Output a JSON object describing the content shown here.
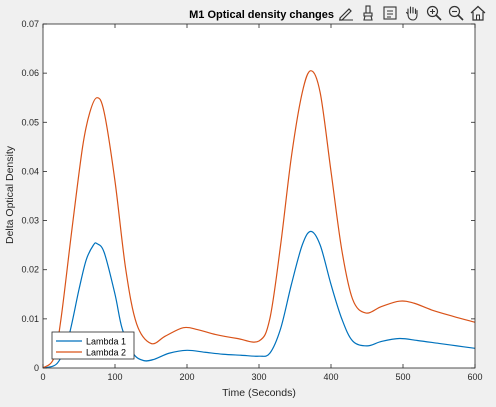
{
  "chart_data": {
    "type": "line",
    "title": "M1  Optical density changes",
    "xlabel": "Time (Seconds)",
    "ylabel": "Delta Optical Density",
    "xlim": [
      0,
      600
    ],
    "ylim": [
      0,
      0.07
    ],
    "xticks": [
      0,
      100,
      200,
      300,
      400,
      500,
      600
    ],
    "xtick_labels": [
      "0",
      "100",
      "200",
      "300",
      "400",
      "500",
      "600"
    ],
    "yticks": [
      0,
      0.01,
      0.02,
      0.03,
      0.04,
      0.05,
      0.06,
      0.07
    ],
    "ytick_labels": [
      "0",
      "0.01",
      "0.02",
      "0.03",
      "0.04",
      "0.05",
      "0.06",
      "0.07"
    ],
    "legend_position": "bottom-left",
    "series": [
      {
        "name": "Lambda 1",
        "color": "#0072BD",
        "points": [
          [
            0,
            0
          ],
          [
            20,
            0.001
          ],
          [
            35,
            0.006
          ],
          [
            50,
            0.016
          ],
          [
            60,
            0.022
          ],
          [
            70,
            0.025
          ],
          [
            75,
            0.0253
          ],
          [
            85,
            0.0235
          ],
          [
            100,
            0.015
          ],
          [
            110,
            0.008
          ],
          [
            125,
            0.003
          ],
          [
            140,
            0.0015
          ],
          [
            155,
            0.0018
          ],
          [
            175,
            0.003
          ],
          [
            200,
            0.0036
          ],
          [
            225,
            0.0032
          ],
          [
            250,
            0.0028
          ],
          [
            275,
            0.0026
          ],
          [
            300,
            0.0024
          ],
          [
            315,
            0.003
          ],
          [
            330,
            0.008
          ],
          [
            345,
            0.017
          ],
          [
            360,
            0.025
          ],
          [
            372,
            0.0278
          ],
          [
            385,
            0.025
          ],
          [
            400,
            0.017
          ],
          [
            415,
            0.01
          ],
          [
            430,
            0.0055
          ],
          [
            450,
            0.0045
          ],
          [
            470,
            0.0054
          ],
          [
            495,
            0.006
          ],
          [
            520,
            0.0056
          ],
          [
            550,
            0.005
          ],
          [
            575,
            0.0045
          ],
          [
            600,
            0.004
          ]
        ]
      },
      {
        "name": "Lambda 2",
        "color": "#D95319",
        "points": [
          [
            0,
            0
          ],
          [
            15,
            0.002
          ],
          [
            25,
            0.01
          ],
          [
            40,
            0.028
          ],
          [
            55,
            0.045
          ],
          [
            65,
            0.052
          ],
          [
            75,
            0.055
          ],
          [
            85,
            0.052
          ],
          [
            100,
            0.038
          ],
          [
            115,
            0.02
          ],
          [
            130,
            0.009
          ],
          [
            150,
            0.005
          ],
          [
            170,
            0.0065
          ],
          [
            195,
            0.0082
          ],
          [
            215,
            0.0078
          ],
          [
            240,
            0.0068
          ],
          [
            270,
            0.006
          ],
          [
            300,
            0.0055
          ],
          [
            315,
            0.01
          ],
          [
            330,
            0.025
          ],
          [
            345,
            0.043
          ],
          [
            360,
            0.056
          ],
          [
            372,
            0.0605
          ],
          [
            385,
            0.056
          ],
          [
            400,
            0.04
          ],
          [
            415,
            0.024
          ],
          [
            430,
            0.014
          ],
          [
            448,
            0.0112
          ],
          [
            470,
            0.0125
          ],
          [
            495,
            0.0136
          ],
          [
            515,
            0.0132
          ],
          [
            540,
            0.0118
          ],
          [
            570,
            0.0105
          ],
          [
            600,
            0.0093
          ]
        ]
      }
    ]
  },
  "toolbar": {
    "icons": [
      "edit-plot-icon",
      "brush-icon",
      "data-tips-icon",
      "pan-icon",
      "zoom-in-icon",
      "zoom-out-icon",
      "home-icon"
    ]
  }
}
